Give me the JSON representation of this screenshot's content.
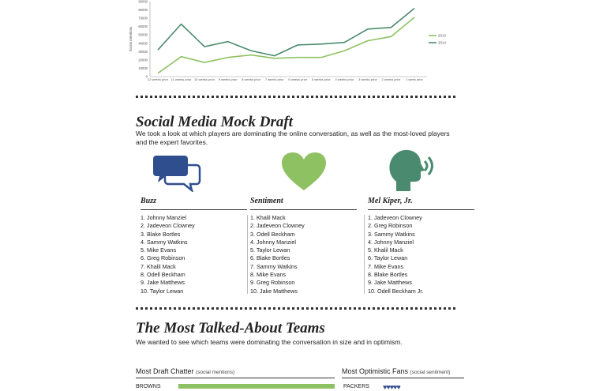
{
  "chart_data": {
    "type": "line",
    "ylabel": "Social mentions",
    "yticks": [
      "90000",
      "80000",
      "70000",
      "60000",
      "50000",
      "40000",
      "30000",
      "20000",
      "10000",
      "0"
    ],
    "ylim": [
      0,
      90000
    ],
    "categories": [
      "12 weeks prior",
      "11 weeks prior",
      "10 weeks prior",
      "9 weeks prior",
      "8 weeks prior",
      "7 weeks prior",
      "6 weeks prior",
      "5 weeks prior",
      "4 weeks prior",
      "3 weeks prior",
      "2 weeks prior",
      "1 week prior"
    ],
    "series": [
      {
        "name": "2013",
        "color": "#8ec162",
        "values": [
          4000,
          24000,
          17000,
          23000,
          26000,
          22000,
          23000,
          23000,
          31000,
          43000,
          48000,
          71000
        ]
      },
      {
        "name": "2014",
        "color": "#4a8a6e",
        "values": [
          32000,
          63000,
          36000,
          42000,
          31000,
          25000,
          38000,
          39000,
          41000,
          57000,
          59000,
          82000
        ]
      }
    ],
    "legend_position": "right"
  },
  "mock_draft": {
    "title": "Social Media Mock Draft",
    "intro": "We took a look at which players are dominating the online conversation, as well as the most-loved players and the expert favorites.",
    "columns": [
      {
        "title": "Buzz",
        "icon": "chat-bubbles-icon",
        "players": [
          "1. Johnny Manziel",
          "2. Jadeveon Clowney",
          "3. Blake Bortles",
          "4. Sammy Watkins",
          "5. Mike Evans",
          "6. Greg Robinson",
          "7. Khalil Mack",
          "8. Odell Beckham",
          "9. Jake Matthews",
          "10. Taylor Lewan"
        ]
      },
      {
        "title": "Sentiment",
        "icon": "heart-icon",
        "players": [
          "1. Khalil Mack",
          "2. Jadeveon Clowney",
          "3. Odell Beckham",
          "4. Johnny Manziel",
          "5. Taylor Lewan",
          "6. Blake Bortles",
          "7. Sammy Watkins",
          "8. Mike Evans",
          "9. Greg Robinson",
          "10. Jake Matthews"
        ]
      },
      {
        "title": "Mel Kiper, Jr.",
        "icon": "speaking-head-icon",
        "players": [
          "1. Jadeveon Clowney",
          "2. Greg Robinson",
          "3. Sammy Watkins",
          "4. Johnny Manziel",
          "5. Khalil Mack",
          "6. Taylor Lewan",
          "7. Mike Evans",
          "8. Blake Bortles",
          "9. Jake Matthews",
          "10. Odell Beckham Jr."
        ]
      }
    ]
  },
  "teams": {
    "title": "The Most Talked-About Teams",
    "intro": "We wanted to see which teams were dominating the conversation in size and in optimism.",
    "chatter": {
      "title": "Most Draft Chatter",
      "subtitle": "(social mentions)",
      "rows": [
        {
          "team": "BROWNS",
          "share": 1.0
        }
      ]
    },
    "optimism": {
      "title": "Most Optimistic Fans",
      "subtitle": "(social sentiment)",
      "rows": [
        {
          "team": "PACKERS",
          "hearts": 5
        }
      ]
    }
  }
}
